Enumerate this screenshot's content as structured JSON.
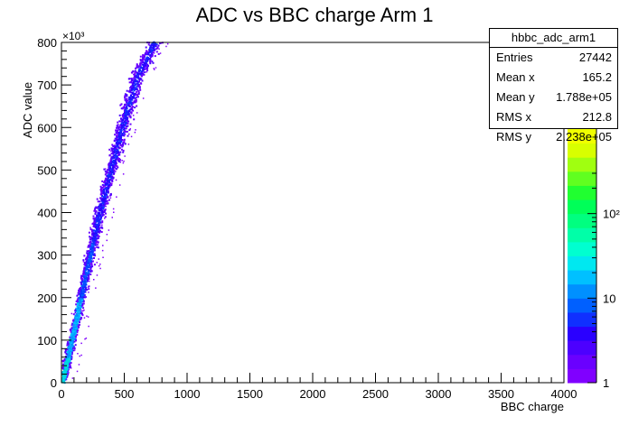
{
  "chart_data": {
    "type": "heatmap",
    "title": "ADC vs BBC charge Arm 1",
    "xlabel": "BBC charge",
    "ylabel": "ADC value",
    "xlim": [
      0,
      4000
    ],
    "ylim": [
      0,
      800000
    ],
    "y_exponent_label": "×10³",
    "x_ticks": [
      "0",
      "500",
      "1000",
      "1500",
      "2000",
      "2500",
      "3000",
      "3500",
      "4000"
    ],
    "y_ticks": [
      "0",
      "100",
      "200",
      "300",
      "400",
      "500",
      "600",
      "700",
      "800"
    ],
    "z_scale": "log",
    "z_range": [
      1,
      1000
    ],
    "z_ticks": [
      "1",
      "10",
      "10²"
    ],
    "colorbar_palette": [
      "#8000ff",
      "#6a00ff",
      "#4c00ff",
      "#2a00ff",
      "#1030ff",
      "#0060ff",
      "#0090ff",
      "#00c0ff",
      "#00e8f0",
      "#00ffd0",
      "#00ffa8",
      "#00ff80",
      "#00ff58",
      "#20ff30",
      "#60ff20",
      "#a0ff10",
      "#d8ff00",
      "#f0ff00"
    ],
    "band": {
      "description_points": [
        [
          0,
          0
        ],
        [
          50,
          60000
        ],
        [
          150,
          200000
        ],
        [
          300,
          400000
        ],
        [
          480,
          600000
        ],
        [
          600,
          720000
        ],
        [
          740,
          800000
        ]
      ],
      "dominant_color": "#2a00ff",
      "core_color": "#00c8ff"
    },
    "stats": {
      "name": "hbbc_adc_arm1",
      "Entries": "27442",
      "Mean x": "165.2",
      "Mean y": "1.788e+05",
      "RMS x": "212.8",
      "RMS y": "2.238e+05"
    },
    "grid": false,
    "legend": "stats-box top-right"
  }
}
